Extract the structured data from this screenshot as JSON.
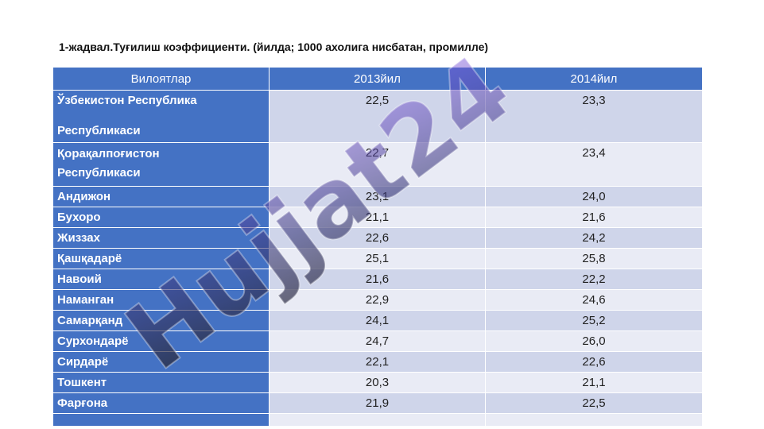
{
  "title": "1-жадвал.Туғилиш коэффициенти. (йилда; 1000 ахолига нисбатан, промилле)",
  "table": {
    "headers": [
      "Вилоятлар",
      "2013йил",
      "2014йил"
    ],
    "rows": [
      {
        "region_line1": "Ўзбекистон Республика",
        "region_line2": "Республикаси",
        "y2013": "22,5",
        "y2014": "23,3"
      },
      {
        "region_line1": "Қорақалпоғистон",
        "region_line2": "Республикаси",
        "y2013": "22,7",
        "y2014": "23,4"
      },
      {
        "region": "Андижон",
        "y2013": "23,1",
        "y2014": "24,0"
      },
      {
        "region": "Бухоро",
        "y2013": "21,1",
        "y2014": "21,6"
      },
      {
        "region": "Жиззах",
        "y2013": "22,6",
        "y2014": "24,2"
      },
      {
        "region": "Қашқадарё",
        "y2013": "25,1",
        "y2014": "25,8"
      },
      {
        "region": "Навоий",
        "y2013": "21,6",
        "y2014": "22,2"
      },
      {
        "region": "Наманган",
        "y2013": "22,9",
        "y2014": "24,6"
      },
      {
        "region": "Самарқанд",
        "y2013": "24,1",
        "y2014": "25,2"
      },
      {
        "region": "Сурхондарё",
        "y2013": "24,7",
        "y2014": "26,0"
      },
      {
        "region": "Сирдарё",
        "y2013": "22,1",
        "y2014": "22,6"
      },
      {
        "region": "Тошкент",
        "y2013": "20,3",
        "y2014": "21,1"
      },
      {
        "region": "Фарғона",
        "y2013": "21,9",
        "y2014": "22,5"
      }
    ]
  },
  "watermark": {
    "text": "Hujjat24",
    "color": "#6f43dd"
  }
}
